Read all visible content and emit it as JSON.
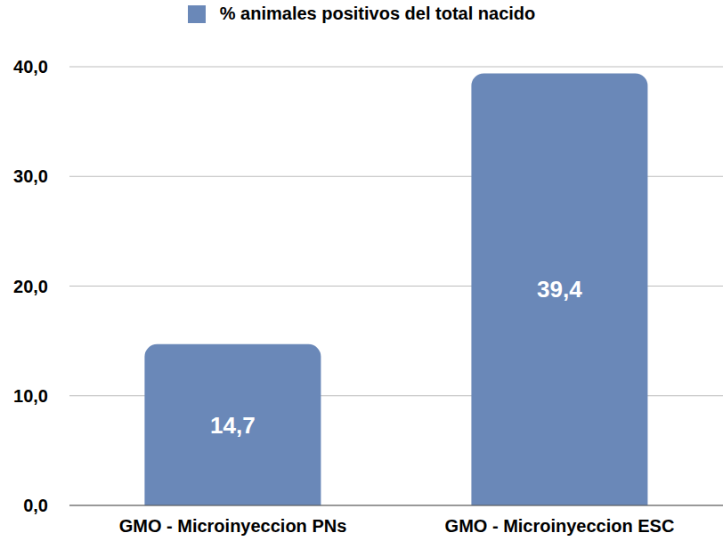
{
  "chart_data": {
    "type": "bar",
    "legend": "top",
    "categories": [
      "GMO - Microinyeccion PNs",
      "GMO - Microinyeccion ESC"
    ],
    "series": [
      {
        "name": "% animales positivos del total nacido",
        "color": "#6a88b8",
        "values": [
          14.7,
          39.4
        ],
        "value_labels": [
          "14,7",
          "39,4"
        ]
      }
    ],
    "ylim": [
      0,
      40
    ],
    "yticks": [
      {
        "value": 0,
        "label": "0,0"
      },
      {
        "value": 10,
        "label": "10,0"
      },
      {
        "value": 20,
        "label": "20,0"
      },
      {
        "value": 30,
        "label": "30,0"
      },
      {
        "value": 40,
        "label": "40,0"
      }
    ],
    "grid": true,
    "data_labels": true
  }
}
